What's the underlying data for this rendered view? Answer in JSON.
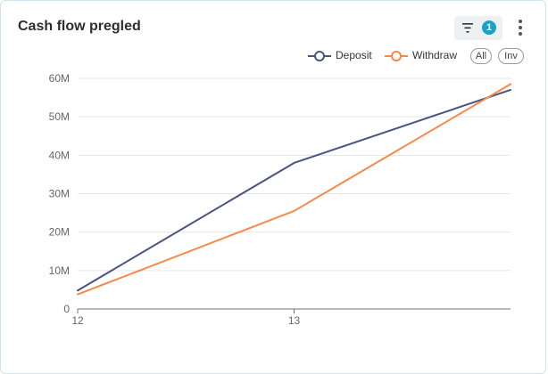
{
  "header": {
    "title": "Cash flow pregled",
    "filter_icon": "filter-icon",
    "filter_count": "1",
    "more_icon": "more-vertical-icon"
  },
  "legend": {
    "deposit_label": "Deposit",
    "withdraw_label": "Withdraw",
    "all_label": "All",
    "inv_label": "Inv"
  },
  "colors": {
    "deposit": "#4a5482",
    "withdraw": "#f58a4c",
    "accent": "#1aa0c9"
  },
  "chart_data": {
    "type": "line",
    "x": [
      12,
      13,
      14
    ],
    "x_tick_labels": [
      "12",
      "13"
    ],
    "y_tick_labels": [
      "0",
      "10M",
      "20M",
      "30M",
      "40M",
      "50M",
      "60M"
    ],
    "ylim": [
      0,
      60000000
    ],
    "grid": true,
    "legend_position": "top-right",
    "series": [
      {
        "name": "Deposit",
        "values": [
          4800000,
          38000000,
          57000000
        ]
      },
      {
        "name": "Withdraw",
        "values": [
          3800000,
          25500000,
          58500000
        ]
      }
    ]
  }
}
